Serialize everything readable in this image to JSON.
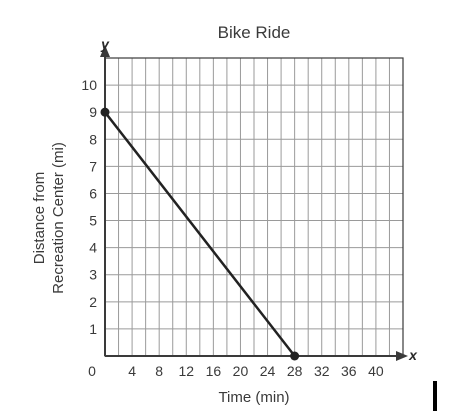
{
  "chart_data": {
    "type": "line",
    "title": "Bike Ride",
    "xlabel": "Time (min)",
    "ylabel_lines": [
      "Distance from",
      "Recreation Center (mi)"
    ],
    "x_axis_letter": "x",
    "y_axis_letter": "y",
    "origin_label": "0",
    "xlim": [
      0,
      44
    ],
    "ylim": [
      0,
      11
    ],
    "x_grid_step": 2,
    "y_grid_step": 1,
    "x_ticks": [
      4,
      8,
      12,
      16,
      20,
      24,
      28,
      32,
      36,
      40
    ],
    "y_ticks": [
      1,
      2,
      3,
      4,
      5,
      6,
      7,
      8,
      9,
      10
    ],
    "grid": true,
    "series": [
      {
        "points": [
          {
            "x": 0,
            "y": 9
          },
          {
            "x": 28,
            "y": 0
          }
        ],
        "endpoints_marked": true
      }
    ],
    "colors": {
      "grid": "#9a9a9a",
      "axis": "#3a3a3a",
      "line": "#222222",
      "text": "#3a3a3a"
    }
  }
}
